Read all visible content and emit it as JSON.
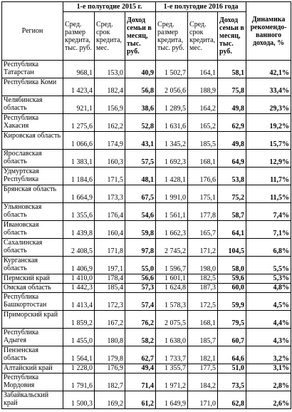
{
  "table": {
    "header": {
      "region": "Регион",
      "period_2015": "1-е полугодие 2015 г.",
      "period_2016": "1-е полугодие 2016 года",
      "dynamics": "Динамика рекомендо-ванного дохода, %",
      "columns": [
        "Сред. размер кредита, тыс. руб.",
        "Сред. срок кредита, мес.",
        "Доход семьи в месяц, тыс. руб.",
        "Сред. размер кредита, тыс. руб.",
        "Сред. срок кредита, мес.",
        "Доход семьи в месяц, тыс. руб."
      ]
    },
    "rows": [
      [
        "Республика Татарстан",
        "968,1",
        "153,0",
        "40,9",
        "1 502,7",
        "164,1",
        "58,1",
        "42,1%"
      ],
      [
        "Республика Коми",
        "1 423,4",
        "182,4",
        "56,8",
        "2 056,6",
        "188,9",
        "75,8",
        "33,4%"
      ],
      [
        "Челябинская область",
        "921,1",
        "156,9",
        "38,6",
        "1 289,5",
        "164,2",
        "49,8",
        "29,3%"
      ],
      [
        "Республика Хакасия",
        "1 275,6",
        "162,2",
        "52,8",
        "1 631,6",
        "165,2",
        "62,9",
        "19,2%"
      ],
      [
        "Кировская область",
        "1 066,6",
        "174,9",
        "43,1",
        "1 345,2",
        "185,5",
        "49,8",
        "15,7%"
      ],
      [
        "Ярославская область",
        "1 383,1",
        "160,3",
        "57,5",
        "1 692,3",
        "168,1",
        "64,9",
        "12,9%"
      ],
      [
        "Удмуртская Республика",
        "1 184,6",
        "171,5",
        "48,1",
        "1 428,1",
        "176,6",
        "53,8",
        "11,7%"
      ],
      [
        "Брянская область",
        "1 664,9",
        "173,3",
        "67,5",
        "1 991,0",
        "175,1",
        "75,2",
        "11,5%"
      ],
      [
        "Ульяновская область",
        "1 355,6",
        "176,4",
        "54,6",
        "1 561,1",
        "177,8",
        "58,7",
        "7,4%"
      ],
      [
        "Ивановская область",
        "1 439,8",
        "160,4",
        "59,8",
        "1 662,3",
        "165,7",
        "64,1",
        "7,1%"
      ],
      [
        "Сахалинская область",
        "2 408,5",
        "171,8",
        "97,8",
        "2 745,2",
        "171,2",
        "104,5",
        "6,8%"
      ],
      [
        "Курганская область",
        "1 406,9",
        "197,1",
        "55,0",
        "1 596,7",
        "198,0",
        "58,0",
        "5,5%"
      ],
      [
        "Пермский край",
        "1 410,0",
        "178,4",
        "56,6",
        "1 601,1",
        "182,5",
        "59,6",
        "5,3%"
      ],
      [
        "Омская область",
        "1 442,3",
        "185,4",
        "57,3",
        "1 624,8",
        "187,3",
        "60,0",
        "4,8%"
      ],
      [
        "Республика Башкортостан",
        "1 413,4",
        "172,3",
        "57,4",
        "1 578,3",
        "172,5",
        "59,9",
        "4,5%"
      ],
      [
        "Приморский край",
        "1 859,2",
        "167,2",
        "76,2",
        "2 075,5",
        "168,1",
        "79,5",
        "4,4%"
      ],
      [
        "Республика Адыгея",
        "1 455,0",
        "180,8",
        "58,2",
        "1 638,0",
        "185,7",
        "60,7",
        "4,3%"
      ],
      [
        "Пензенская область",
        "1 564,1",
        "179,8",
        "62,7",
        "1 733,7",
        "182,1",
        "64,6",
        "3,2%"
      ],
      [
        "Алтайский край",
        "1 228,0",
        "176,9",
        "49,4",
        "1 355,7",
        "177,5",
        "51,0",
        "3,1%"
      ],
      [
        "Республика Мордовия",
        "1 791,6",
        "182,7",
        "71,4",
        "1 971,2",
        "184,2",
        "73,5",
        "2,8%"
      ],
      [
        "Забайкальский край",
        "1 500,3",
        "169,2",
        "61,2",
        "1 649,9",
        "171,0",
        "62,8",
        "2,6%"
      ]
    ]
  }
}
